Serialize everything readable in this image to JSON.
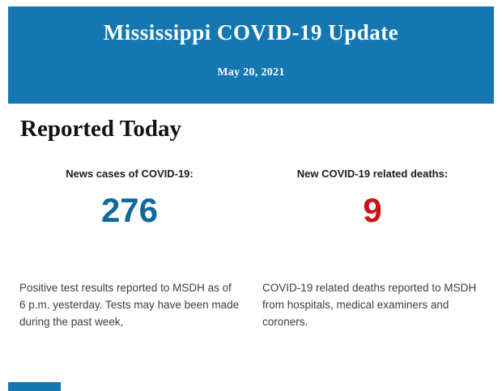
{
  "header": {
    "title": "Mississippi COVID-19 Update",
    "date": "May 20, 2021",
    "background_color": "#1577b2",
    "text_color": "#ffffff"
  },
  "section": {
    "heading": "Reported Today"
  },
  "stats": {
    "cases": {
      "label": "News cases of COVID-19:",
      "value": "276",
      "value_color": "#11689e",
      "description": "Positive test results reported to MSDH as of 6 p.m. yesterday. Tests may have been made during the past week,"
    },
    "deaths": {
      "label": "New COVID-19 related deaths:",
      "value": "9",
      "value_color": "#cc1111",
      "description": "COVID-19 related deaths reported to MSDH from hospitals, medical examiners and coroners."
    }
  },
  "footer": {
    "partial_bar_color": "#1577b2"
  }
}
